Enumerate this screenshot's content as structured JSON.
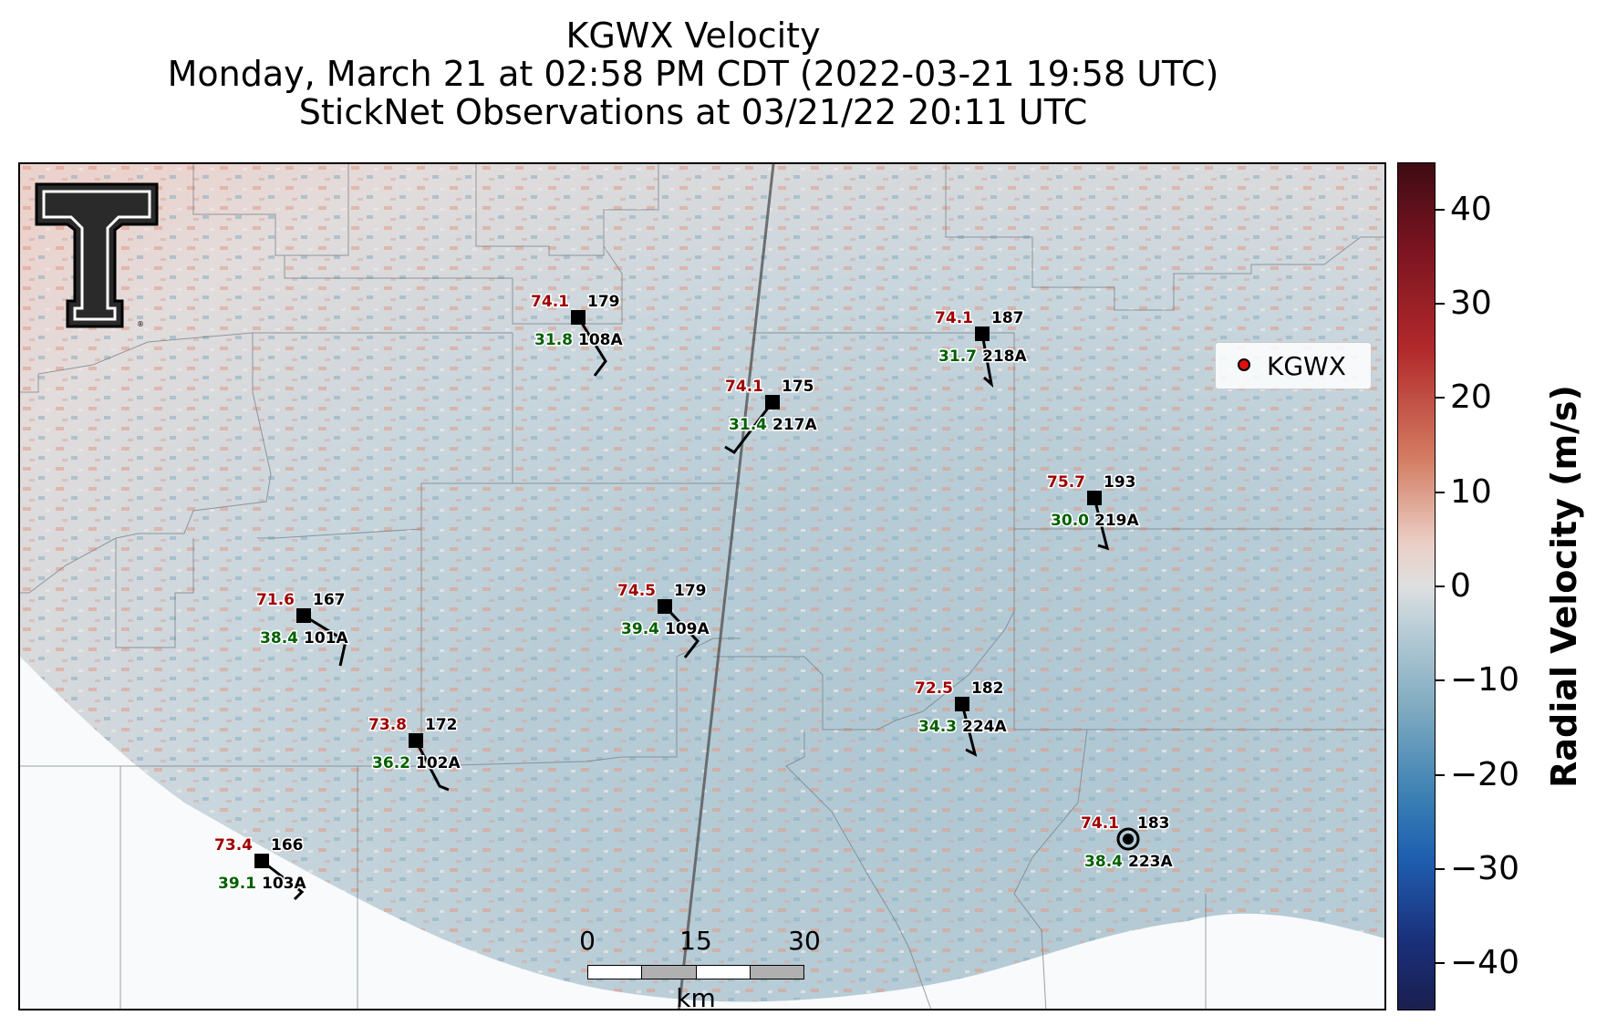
{
  "title": {
    "line1": "KGWX Velocity",
    "line2": "Monday, March 21 at 02:58 PM CDT (2022-03-21 19:58 UTC)",
    "line3": "StickNet Observations at 03/21/22 20:11 UTC"
  },
  "legend": {
    "label": "KGWX",
    "marker_color": "#e01010"
  },
  "colorbar": {
    "label": "Radial Velocity (m/s)",
    "ticks": [
      "40",
      "30",
      "20",
      "10",
      "0",
      "−10",
      "−20",
      "−30",
      "−40"
    ],
    "range": [
      -45,
      45
    ]
  },
  "scalebar": {
    "ticks": [
      "0",
      "15",
      "30"
    ],
    "unit": "km"
  },
  "logo": {
    "icon": "texas-tech-double-t-logo"
  },
  "stations": [
    {
      "id": "108A",
      "temp": "74.1",
      "dew": "31.8",
      "dir": "179"
    },
    {
      "id": "218A",
      "temp": "74.1",
      "dew": "31.7",
      "dir": "187"
    },
    {
      "id": "217A",
      "temp": "74.1",
      "dew": "31.4",
      "dir": "175"
    },
    {
      "id": "219A",
      "temp": "75.7",
      "dew": "30.0",
      "dir": "193"
    },
    {
      "id": "101A",
      "temp": "71.6",
      "dew": "38.4",
      "dir": "167"
    },
    {
      "id": "109A",
      "temp": "74.5",
      "dew": "39.4",
      "dir": "179"
    },
    {
      "id": "224A",
      "temp": "72.5",
      "dew": "34.3",
      "dir": "182"
    },
    {
      "id": "102A",
      "temp": "73.8",
      "dew": "36.2",
      "dir": "172"
    },
    {
      "id": "223A",
      "temp": "74.1",
      "dew": "38.4",
      "dir": "183"
    },
    {
      "id": "103A",
      "temp": "73.4",
      "dew": "39.1",
      "dir": "166"
    }
  ],
  "colors": {
    "temp": "#a00000",
    "dew": "#006000",
    "id": "#000000"
  }
}
